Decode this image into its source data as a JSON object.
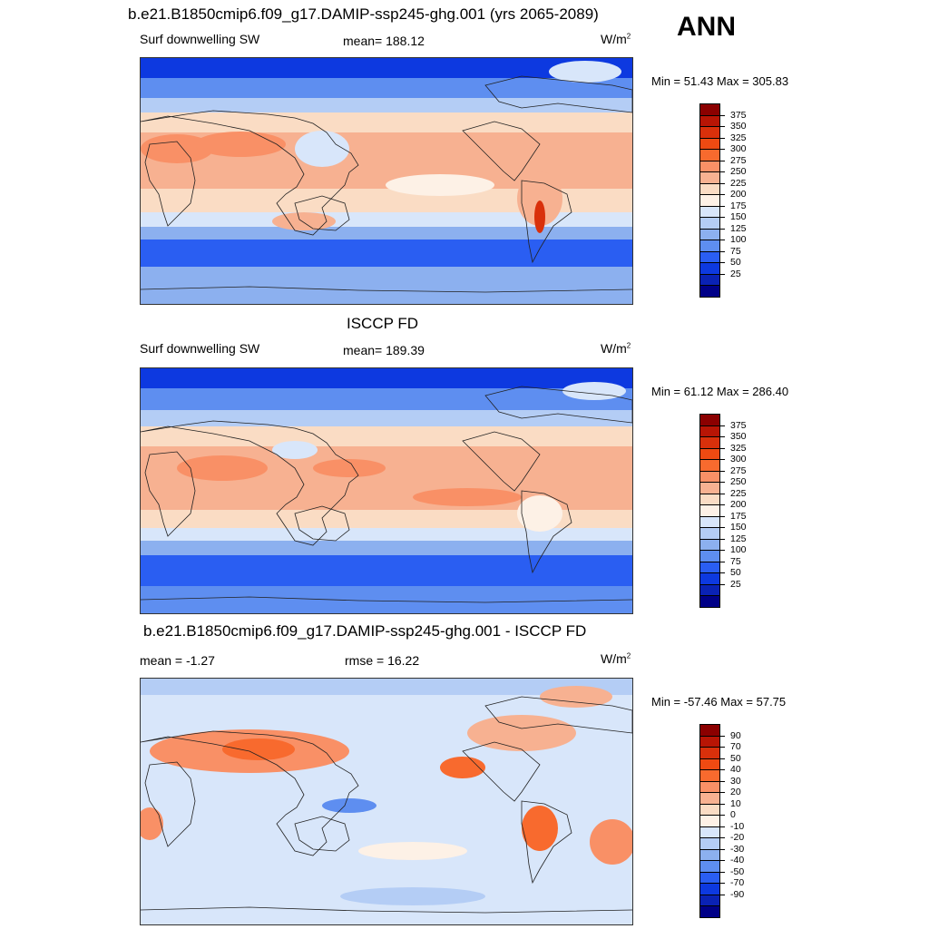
{
  "season_label": "ANN",
  "panels": [
    {
      "title": "b.e21.B1850cmip6.f09_g17.DAMIP-ssp245-ghg.001 (yrs 2065-2089)",
      "left_label": "Surf downwelling SW",
      "center_label": "mean= 188.12",
      "units_base": "W/m",
      "units_exp": "2",
      "minmax": "Min =  51.43 Max = 305.83",
      "colorbar": {
        "labels": [
          "375",
          "350",
          "325",
          "300",
          "275",
          "250",
          "225",
          "200",
          "175",
          "150",
          "125",
          "100",
          "75",
          "50",
          "25"
        ],
        "colors": [
          "#8b0000",
          "#b81505",
          "#d9300b",
          "#ef4a12",
          "#f86a2e",
          "#f99066",
          "#f7b191",
          "#fadcc4",
          "#fdf1e6",
          "#d8e6fa",
          "#b4cdf5",
          "#8cb0ef",
          "#5e8ef0",
          "#2a5ef2",
          "#0d39e0",
          "#0a22b5",
          "#000087"
        ]
      }
    },
    {
      "title": "ISCCP FD",
      "left_label": "Surf downwelling SW",
      "center_label": "mean= 189.39",
      "units_base": "W/m",
      "units_exp": "2",
      "minmax": "Min =  61.12 Max = 286.40",
      "colorbar": {
        "labels": [
          "375",
          "350",
          "325",
          "300",
          "275",
          "250",
          "225",
          "200",
          "175",
          "150",
          "125",
          "100",
          "75",
          "50",
          "25"
        ],
        "colors": [
          "#8b0000",
          "#b81505",
          "#d9300b",
          "#ef4a12",
          "#f86a2e",
          "#f99066",
          "#f7b191",
          "#fadcc4",
          "#fdf1e6",
          "#d8e6fa",
          "#b4cdf5",
          "#8cb0ef",
          "#5e8ef0",
          "#2a5ef2",
          "#0d39e0",
          "#0a22b5",
          "#000087"
        ]
      }
    },
    {
      "title": "b.e21.B1850cmip6.f09_g17.DAMIP-ssp245-ghg.001 - ISCCP FD",
      "left_label": "mean =  -1.27",
      "center_label": "rmse =  16.22",
      "units_base": "W/m",
      "units_exp": "2",
      "minmax": "Min = -57.46 Max =  57.75",
      "colorbar": {
        "labels": [
          "90",
          "70",
          "50",
          "40",
          "30",
          "20",
          "10",
          "0",
          "-10",
          "-20",
          "-30",
          "-40",
          "-50",
          "-70",
          "-90"
        ],
        "colors": [
          "#8b0000",
          "#b81505",
          "#d9300b",
          "#ef4a12",
          "#f86a2e",
          "#f99066",
          "#f7b191",
          "#fadcc4",
          "#fdf1e6",
          "#d8e6fa",
          "#b4cdf5",
          "#8cb0ef",
          "#5e8ef0",
          "#2a5ef2",
          "#0d39e0",
          "#0a22b5",
          "#000087"
        ]
      }
    }
  ]
}
